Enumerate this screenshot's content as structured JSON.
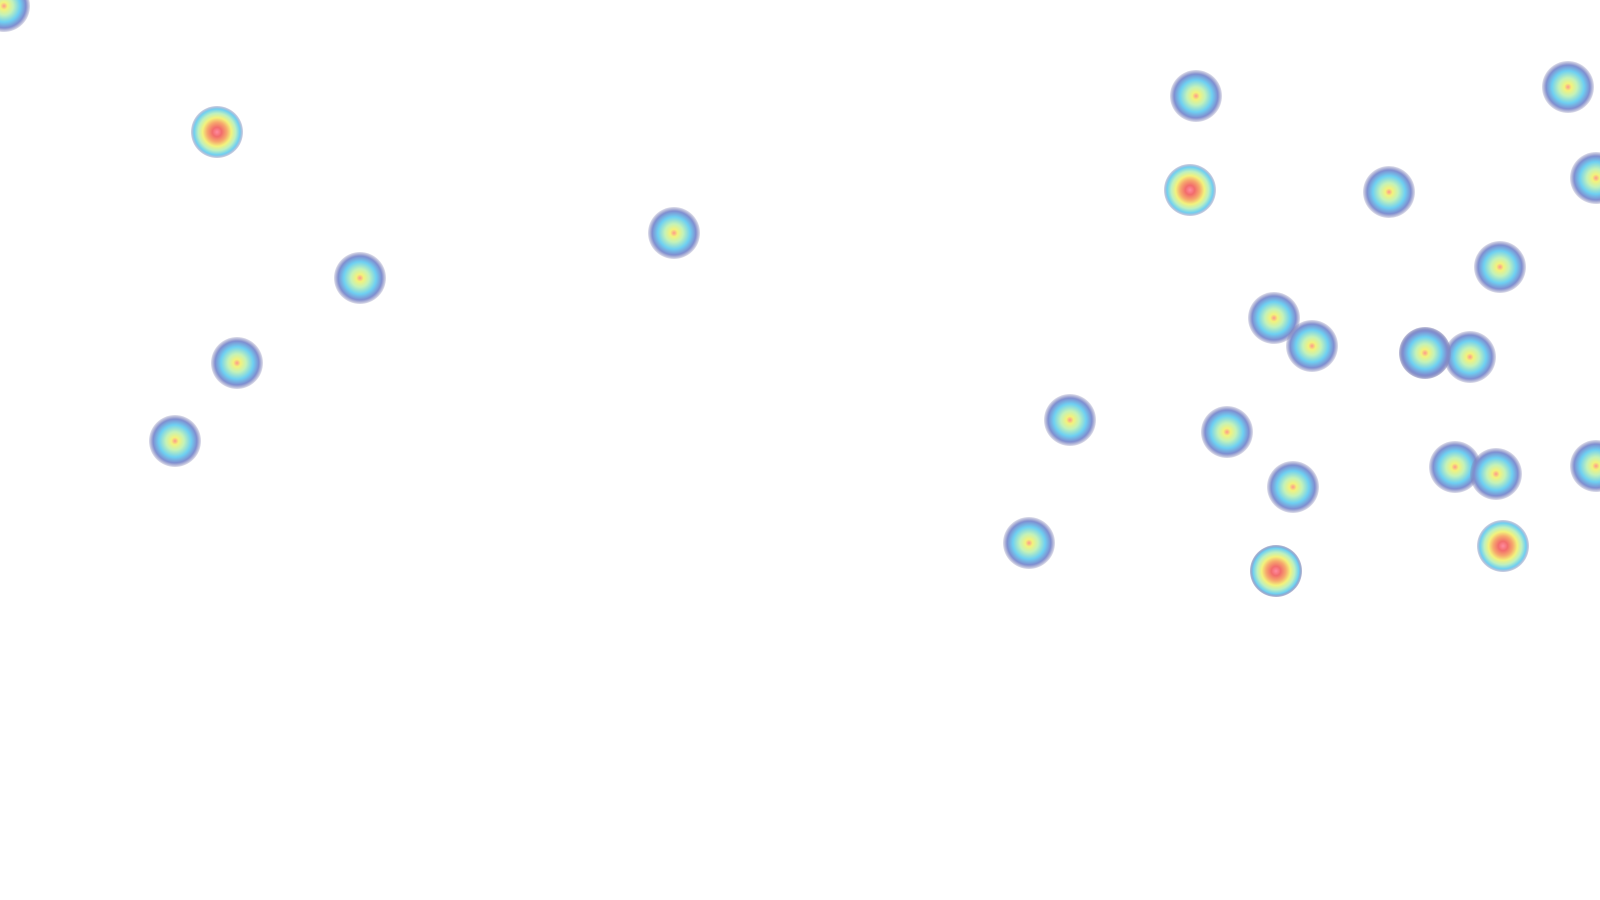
{
  "heatmap": {
    "gradient": [
      "#7f7fb0",
      "#6ec8f0",
      "#bdf0c0",
      "#f4f27a",
      "#f58a8a"
    ],
    "hot_color": "#f26c6c",
    "points": [
      {
        "id": "p01",
        "intensity": 1
      },
      {
        "id": "p02",
        "intensity": 2
      },
      {
        "id": "p03",
        "intensity": 1
      },
      {
        "id": "p04",
        "intensity": 1
      },
      {
        "id": "p05",
        "intensity": 1
      },
      {
        "id": "p06",
        "intensity": 1
      },
      {
        "id": "p07",
        "intensity": 1
      },
      {
        "id": "p08",
        "intensity": 2
      },
      {
        "id": "p09",
        "intensity": 1
      },
      {
        "id": "p10",
        "intensity": 1
      },
      {
        "id": "p11",
        "intensity": 1
      },
      {
        "id": "p12",
        "intensity": 1
      },
      {
        "id": "p13",
        "intensity": 1
      },
      {
        "id": "p14",
        "intensity": 1
      },
      {
        "id": "p15",
        "intensity": 1
      },
      {
        "id": "p16",
        "intensity": 1
      },
      {
        "id": "p17",
        "intensity": 1
      },
      {
        "id": "p18",
        "intensity": 1
      },
      {
        "id": "p19",
        "intensity": 1
      },
      {
        "id": "p20",
        "intensity": 1
      },
      {
        "id": "p21",
        "intensity": 1
      },
      {
        "id": "p22",
        "intensity": 1
      },
      {
        "id": "p23",
        "intensity": 1
      },
      {
        "id": "p24",
        "intensity": 1
      },
      {
        "id": "p25",
        "intensity": 2
      },
      {
        "id": "p26",
        "intensity": 1
      },
      {
        "id": "p27",
        "intensity": 2
      }
    ]
  }
}
